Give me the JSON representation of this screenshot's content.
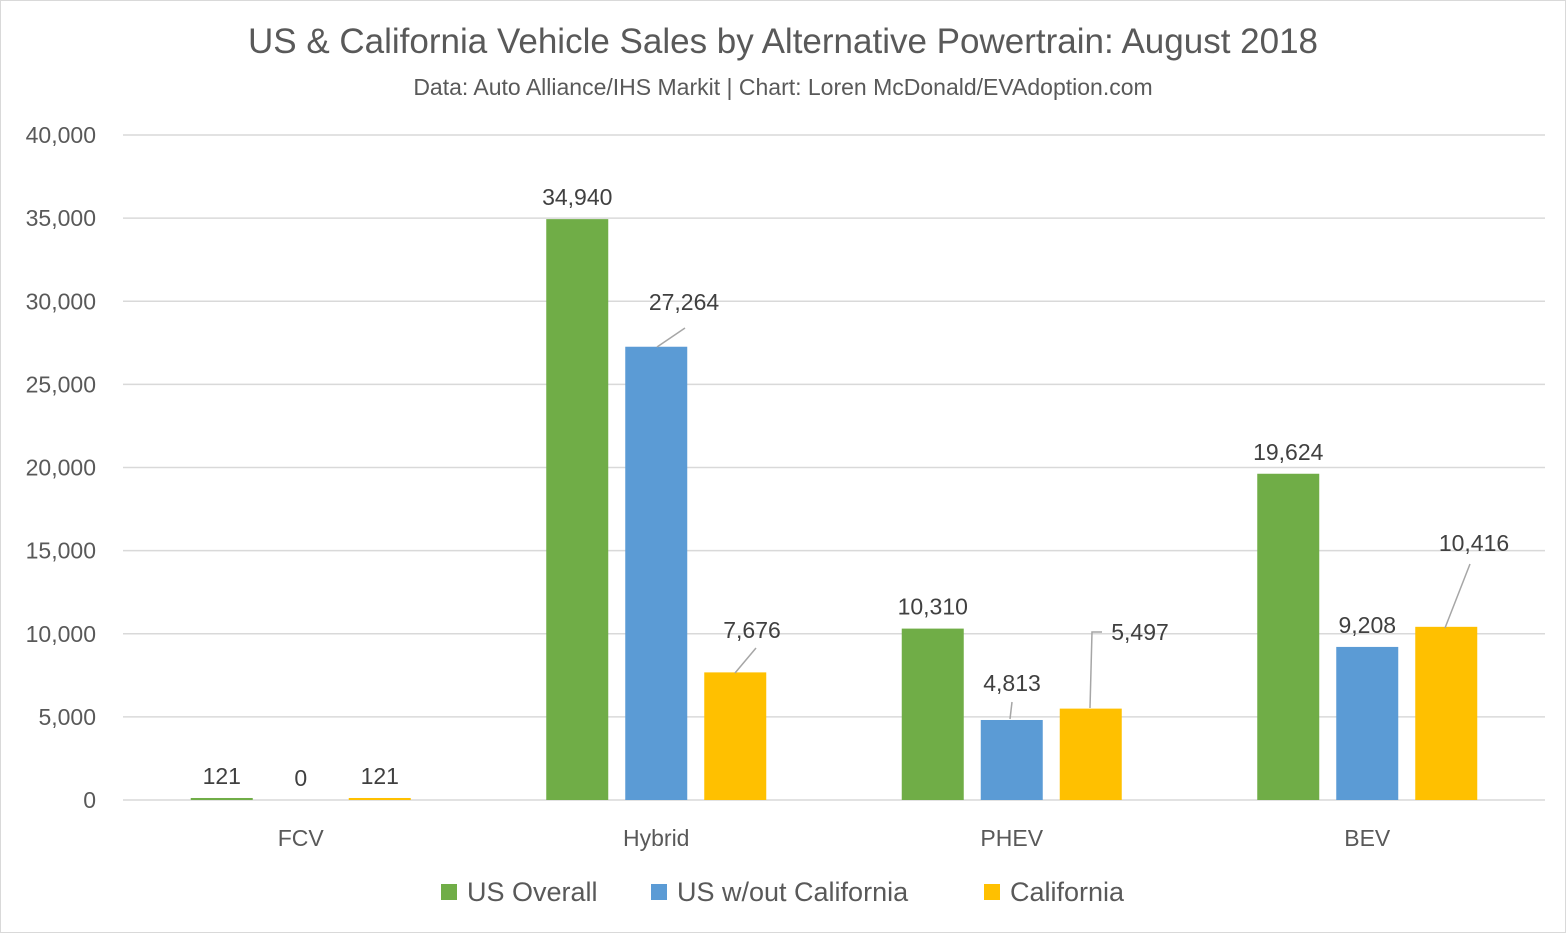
{
  "chart_data": {
    "type": "bar",
    "title": "US & California Vehicle Sales by Alternative Powertrain: August 2018",
    "subtitle": "Data: Auto Alliance/IHS Markit | Chart: Loren McDonald/EVAdoption.com",
    "xlabel": "",
    "ylabel": "",
    "ylim": [
      0,
      40000
    ],
    "yticks": [
      "0",
      "5,000",
      "10,000",
      "15,000",
      "20,000",
      "25,000",
      "30,000",
      "35,000",
      "40,000"
    ],
    "grid": true,
    "legend_position": "bottom",
    "categories": [
      "FCV",
      "Hybrid",
      "PHEV",
      "BEV"
    ],
    "series": [
      {
        "name": "US Overall",
        "color": "#70AD47",
        "values": [
          121,
          34940,
          10310,
          19624
        ],
        "labels": [
          "121",
          "34,940",
          "10,310",
          "19,624"
        ]
      },
      {
        "name": "US w/out California",
        "color": "#5B9BD5",
        "values": [
          0,
          27264,
          4813,
          9208
        ],
        "labels": [
          "0",
          "27,264",
          "4,813",
          "9,208"
        ]
      },
      {
        "name": "California",
        "color": "#FFC000",
        "values": [
          121,
          7676,
          5497,
          10416
        ],
        "labels": [
          "121",
          "7,676",
          "5,497",
          "10,416"
        ]
      }
    ]
  }
}
